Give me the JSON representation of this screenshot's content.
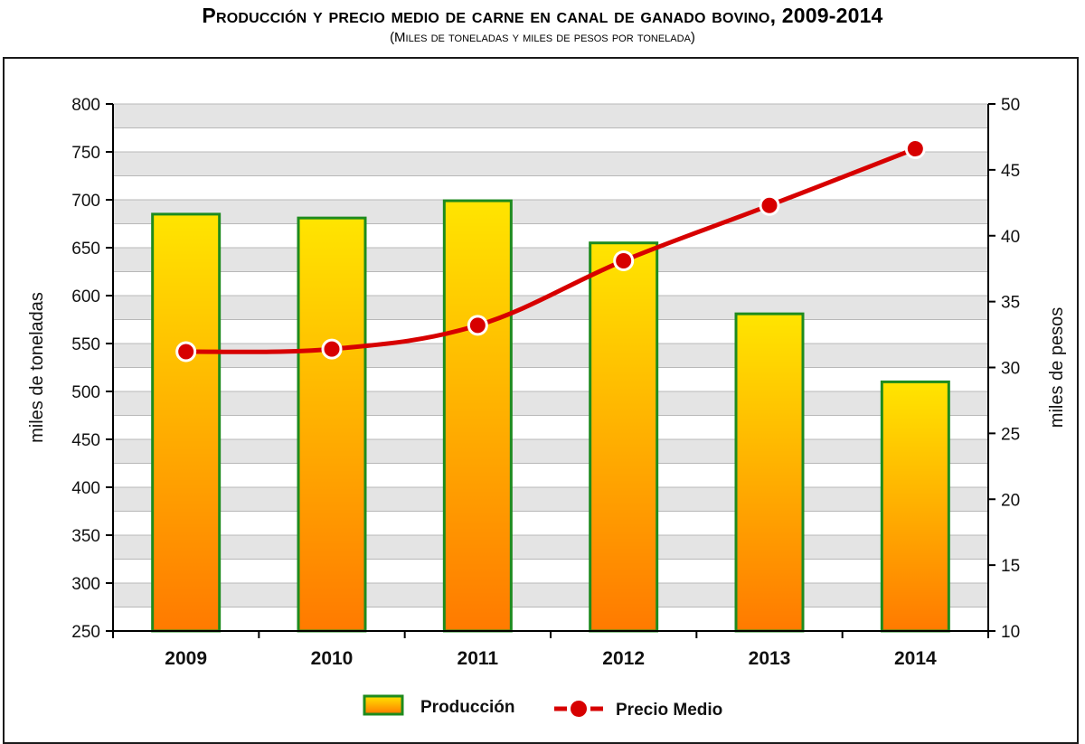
{
  "chart_data": {
    "type": "bar+line",
    "title": "Producción y precio medio de carne en canal de ganado bovino, 2009-2014",
    "subtitle": "(Miles de toneladas y miles de pesos por tonelada)",
    "categories": [
      "2009",
      "2010",
      "2011",
      "2012",
      "2013",
      "2014"
    ],
    "series": [
      {
        "name": "Producción",
        "type": "bar",
        "axis": "left",
        "values": [
          685,
          681,
          699,
          655,
          581,
          510
        ]
      },
      {
        "name": "Precio Medio",
        "type": "line",
        "axis": "right",
        "values": [
          31.2,
          31.4,
          33.2,
          38.1,
          42.3,
          46.6
        ]
      }
    ],
    "ylabel_left": "miles de toneladas",
    "ylabel_right": "miles de pesos",
    "ylim_left": [
      250,
      800
    ],
    "ylim_right": [
      10,
      50
    ],
    "yticks_left": [
      "250",
      "300",
      "350",
      "400",
      "450",
      "500",
      "550",
      "600",
      "650",
      "700",
      "750",
      "800"
    ],
    "yticks_right": [
      "10",
      "15",
      "20",
      "25",
      "30",
      "35",
      "40",
      "45",
      "50"
    ],
    "grid": true,
    "legend": {
      "position": "bottom-center",
      "entries": [
        "Producción",
        "Precio Medio"
      ]
    },
    "colors": {
      "bar_top": "#FFE500",
      "bar_bottom": "#FF7A00",
      "bar_border": "#1E8B1E",
      "line": "#D70000",
      "grid_band": "#E4E4E4"
    }
  }
}
